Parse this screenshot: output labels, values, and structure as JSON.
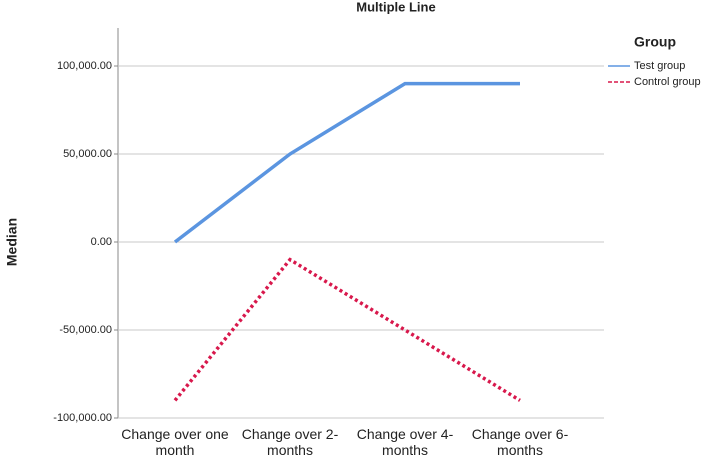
{
  "chart_data": {
    "type": "line",
    "title": "Multiple Line",
    "y_label": "Median",
    "categories": [
      "Change over one month",
      "Change over 2-months",
      "Change over 4-months",
      "Change over 6-months"
    ],
    "series": [
      {
        "name": "Test group",
        "color": "#5b95e0",
        "dash": "solid",
        "values": [
          0,
          50000,
          90000,
          90000
        ]
      },
      {
        "name": "Control group",
        "color": "#d8184c",
        "dash": "dotted",
        "values": [
          -90000,
          -10000,
          -50000,
          -90000
        ]
      }
    ],
    "legend_title": "Group",
    "legend": "right",
    "ylim": [
      -100000,
      121600
    ],
    "yticks": [
      {
        "value": -100000,
        "label": "-100,000.00"
      },
      {
        "value": -50000,
        "label": "-50,000.00"
      },
      {
        "value": 0,
        "label": "0.00"
      },
      {
        "value": 50000,
        "label": "50,000.00"
      },
      {
        "value": 100000,
        "label": "100,000.00"
      }
    ],
    "grid": true
  }
}
